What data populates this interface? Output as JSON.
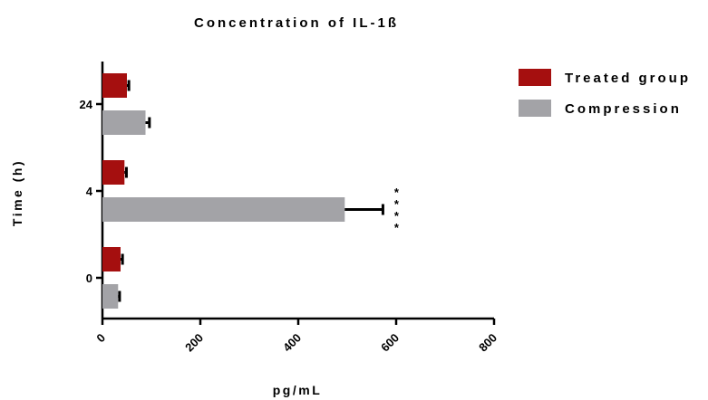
{
  "chart_data": {
    "type": "bar",
    "orientation": "horizontal",
    "title": "Concentration of IL-1ß",
    "xlabel": "pg/mL",
    "ylabel": "Time (h)",
    "xlim": [
      0,
      800
    ],
    "xticks": [
      "0",
      "200",
      "400",
      "600",
      "800"
    ],
    "categories": [
      "24",
      "4",
      "0"
    ],
    "series": [
      {
        "name": "Treated group",
        "color": "#a50f0f",
        "values": [
          50,
          45,
          37
        ],
        "errors": [
          4,
          4,
          4
        ]
      },
      {
        "name": "Compression",
        "color": "#a3a3a7",
        "values": [
          88,
          495,
          32
        ],
        "errors": [
          8,
          78,
          3
        ]
      }
    ],
    "annotations": [
      {
        "category": "4",
        "series": "Compression",
        "text": "****"
      }
    ],
    "legend_position": "top-right",
    "grid": false
  }
}
